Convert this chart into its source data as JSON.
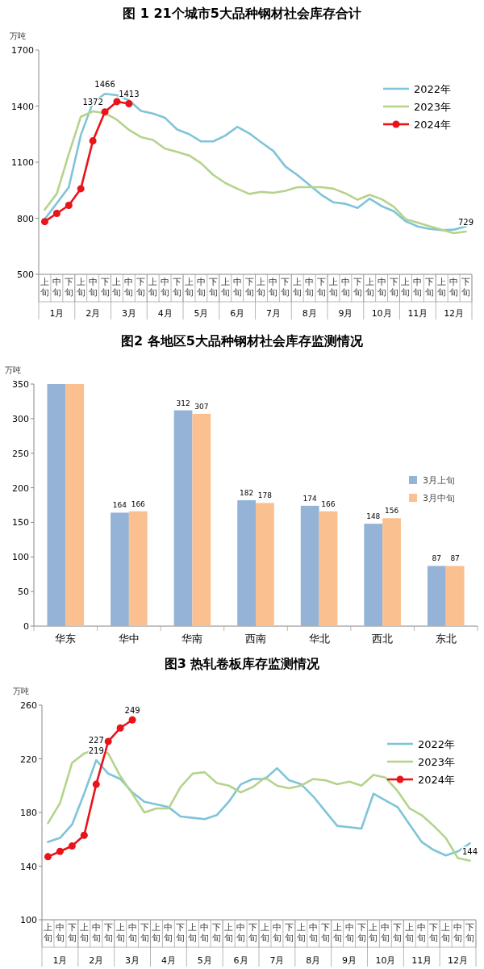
{
  "chart_data": [
    {
      "type": "line",
      "title": "图 1 21个城市5大品种钢材社会库存合计",
      "ylabel": "万吨",
      "categories": [
        "上旬",
        "中旬",
        "下旬",
        "上旬",
        "中旬",
        "下旬",
        "上旬",
        "中旬",
        "下旬",
        "上旬",
        "中旬",
        "下旬",
        "上旬",
        "中旬",
        "下旬",
        "上旬",
        "中旬",
        "下旬",
        "上旬",
        "中旬",
        "下旬",
        "上旬",
        "中旬",
        "下旬",
        "上旬",
        "中旬",
        "下旬",
        "上旬",
        "中旬",
        "下旬",
        "上旬",
        "中旬",
        "下旬",
        "上旬",
        "中旬",
        "下旬"
      ],
      "annotations": [
        "1月",
        "2月",
        "3月",
        "4月",
        "5月",
        "6月",
        "7月",
        "8月",
        "9月",
        "10月",
        "11月",
        "12月"
      ],
      "ylim": [
        500,
        1700
      ],
      "yticks": [
        500,
        800,
        1100,
        1400,
        1700
      ],
      "legend": "top right",
      "series": [
        {
          "name": "2022年",
          "color": "#7fc4d8",
          "values": [
            795,
            880,
            966,
            1245,
            1419,
            1466,
            1458,
            1431,
            1374,
            1360,
            1337,
            1275,
            1250,
            1211,
            1211,
            1242,
            1289,
            1254,
            1206,
            1160,
            1077,
            1031,
            978,
            925,
            885,
            877,
            855,
            905,
            865,
            838,
            784,
            756,
            743,
            736,
            739,
            756
          ],
          "value_labels": [
            null,
            null,
            null,
            null,
            null,
            "1466",
            null,
            null,
            null,
            null,
            null,
            null,
            null,
            null,
            null,
            null,
            null,
            null,
            null,
            null,
            null,
            null,
            null,
            null,
            null,
            null,
            null,
            null,
            null,
            null,
            null,
            null,
            null,
            null,
            null,
            null
          ]
        },
        {
          "name": "2023年",
          "color": "#b5d38c",
          "values": [
            846,
            931,
            1144,
            1343,
            1372,
            1362,
            1327,
            1273,
            1234,
            1219,
            1172,
            1155,
            1136,
            1094,
            1032,
            989,
            958,
            930,
            941,
            936,
            947,
            966,
            966,
            966,
            958,
            933,
            899,
            925,
            902,
            862,
            795,
            776,
            757,
            739,
            720,
            729
          ],
          "value_labels": [
            null,
            null,
            null,
            null,
            "1372",
            null,
            null,
            null,
            null,
            null,
            null,
            null,
            null,
            null,
            null,
            null,
            null,
            null,
            null,
            null,
            null,
            null,
            null,
            null,
            null,
            null,
            null,
            null,
            null,
            null,
            null,
            null,
            null,
            null,
            null,
            "729"
          ]
        },
        {
          "name": "2024年",
          "color": "#e8141a",
          "marker": "circle",
          "values": [
            782,
            826,
            869,
            958,
            1214,
            1369,
            1424,
            1413,
            null,
            null,
            null,
            null,
            null,
            null,
            null,
            null,
            null,
            null,
            null,
            null,
            null,
            null,
            null,
            null,
            null,
            null,
            null,
            null,
            null,
            null,
            null,
            null,
            null,
            null,
            null,
            null
          ],
          "value_labels": [
            null,
            null,
            null,
            null,
            null,
            null,
            null,
            "1413",
            null,
            null,
            null,
            null,
            null,
            null,
            null,
            null,
            null,
            null,
            null,
            null,
            null,
            null,
            null,
            null,
            null,
            null,
            null,
            null,
            null,
            null,
            null,
            null,
            null,
            null,
            null,
            null
          ]
        }
      ]
    },
    {
      "type": "bar",
      "title": "图2 各地区5大品种钢材社会库存监测情况",
      "ylabel": "万吨",
      "categories": [
        "华东",
        "华中",
        "华南",
        "西南",
        "华北",
        "西北",
        "东北"
      ],
      "ylim": [
        0,
        350
      ],
      "yticks": [
        0,
        50,
        100,
        150,
        200,
        250,
        300,
        350
      ],
      "legend": "right",
      "series": [
        {
          "name": "3月上旬",
          "color": "#95b3d7",
          "values": [
            350,
            164,
            312,
            182,
            174,
            148,
            87
          ],
          "value_labels": [
            null,
            "164",
            "312",
            "182",
            "174",
            "148",
            "87"
          ]
        },
        {
          "name": "3月中旬",
          "color": "#fac090",
          "values": [
            350,
            166,
            307,
            178,
            166,
            156,
            87
          ],
          "value_labels": [
            null,
            "166",
            "307",
            "178",
            "166",
            "156",
            "87"
          ]
        }
      ]
    },
    {
      "type": "line",
      "title": "图3 热轧卷板库存监测情况",
      "ylabel": "万吨",
      "categories": [
        "上旬",
        "中旬",
        "下旬",
        "上旬",
        "中旬",
        "下旬",
        "上旬",
        "中旬",
        "下旬",
        "上旬",
        "中旬",
        "下旬",
        "上旬",
        "中旬",
        "下旬",
        "上旬",
        "中旬",
        "下旬",
        "上旬",
        "中旬",
        "下旬",
        "上旬",
        "中旬",
        "下旬",
        "上旬",
        "中旬",
        "下旬",
        "上旬",
        "中旬",
        "下旬",
        "上旬",
        "中旬",
        "下旬",
        "上旬",
        "中旬",
        "下旬"
      ],
      "annotations": [
        "1月",
        "2月",
        "3月",
        "4月",
        "5月",
        "6月",
        "7月",
        "8月",
        "9月",
        "10月",
        "11月",
        "12月"
      ],
      "ylim": [
        100,
        260
      ],
      "yticks": [
        100,
        140,
        180,
        220,
        260
      ],
      "legend": "top right",
      "series": [
        {
          "name": "2022年",
          "color": "#7fc4d8",
          "values": [
            158,
            161,
            171,
            194,
            219,
            209,
            205,
            195,
            188,
            186,
            184,
            177,
            176,
            175,
            178,
            188,
            201,
            205,
            205,
            213,
            204,
            201,
            192,
            181,
            170,
            169,
            168,
            194,
            189,
            184,
            171,
            158,
            152,
            148,
            151,
            157
          ],
          "value_labels": [
            null,
            null,
            null,
            null,
            "219",
            null,
            null,
            null,
            null,
            null,
            null,
            null,
            null,
            null,
            null,
            null,
            null,
            null,
            null,
            null,
            null,
            null,
            null,
            null,
            null,
            null,
            null,
            null,
            null,
            null,
            null,
            null,
            null,
            null,
            null,
            null
          ]
        },
        {
          "name": "2023年",
          "color": "#b5d38c",
          "values": [
            172,
            187,
            217,
            224,
            227,
            224,
            207,
            194,
            180,
            183,
            183,
            199,
            209,
            210,
            202,
            200,
            195,
            199,
            206,
            200,
            198,
            200,
            205,
            204,
            201,
            203,
            200,
            208,
            206,
            196,
            183,
            178,
            170,
            161,
            146,
            144
          ],
          "value_labels": [
            null,
            null,
            null,
            null,
            "227",
            null,
            null,
            null,
            null,
            null,
            null,
            null,
            null,
            null,
            null,
            null,
            null,
            null,
            null,
            null,
            null,
            null,
            null,
            null,
            null,
            null,
            null,
            null,
            null,
            null,
            null,
            null,
            null,
            null,
            null,
            "144"
          ]
        },
        {
          "name": "2024年",
          "color": "#e8141a",
          "marker": "circle",
          "values": [
            147,
            151,
            155,
            163,
            201,
            233,
            243,
            249,
            null,
            null,
            null,
            null,
            null,
            null,
            null,
            null,
            null,
            null,
            null,
            null,
            null,
            null,
            null,
            null,
            null,
            null,
            null,
            null,
            null,
            null,
            null,
            null,
            null,
            null,
            null,
            null
          ],
          "value_labels": [
            null,
            null,
            null,
            null,
            null,
            null,
            null,
            "249",
            null,
            null,
            null,
            null,
            null,
            null,
            null,
            null,
            null,
            null,
            null,
            null,
            null,
            null,
            null,
            null,
            null,
            null,
            null,
            null,
            null,
            null,
            null,
            null,
            null,
            null,
            null,
            null
          ]
        }
      ]
    }
  ]
}
